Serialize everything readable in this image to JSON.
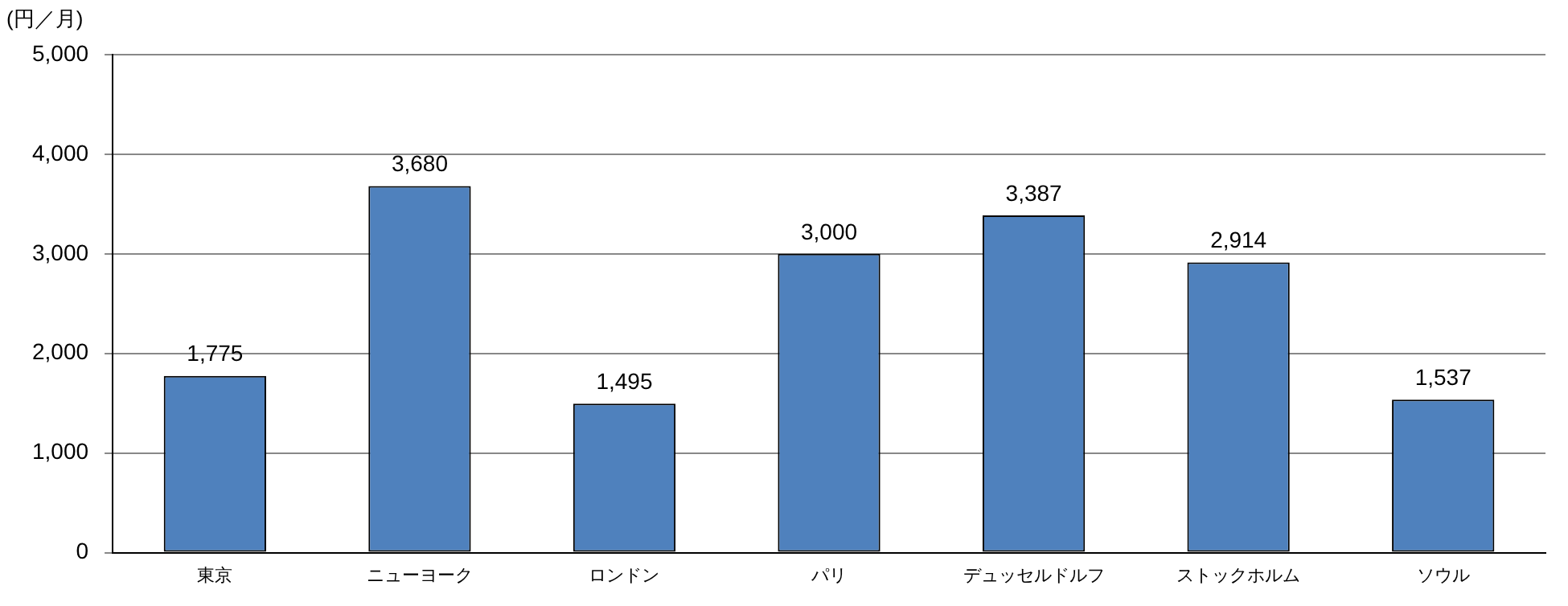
{
  "chart_data": {
    "type": "bar",
    "ylabel": "(円／月)",
    "categories": [
      "東京",
      "ニューヨーク",
      "ロンドン",
      "パリ",
      "デュッセルドルフ",
      "ストックホルム",
      "ソウル"
    ],
    "values": [
      1775,
      3680,
      1495,
      3000,
      3387,
      2914,
      1537
    ],
    "value_labels": [
      "1,775",
      "3,680",
      "1,495",
      "3,000",
      "3,387",
      "2,914",
      "1,537"
    ],
    "color": "#4f81bd",
    "ylim": [
      0,
      5000
    ],
    "yticks": [
      0,
      {
        "value": 1000,
        "label": "1,000"
      },
      {
        "value": 2000,
        "label": "2,000"
      },
      {
        "value": 3000,
        "label": "3,000"
      },
      {
        "value": 4000,
        "label": "4,000"
      },
      {
        "value": 5000,
        "label": "5,000"
      }
    ],
    "grid": "y",
    "legend": false
  }
}
